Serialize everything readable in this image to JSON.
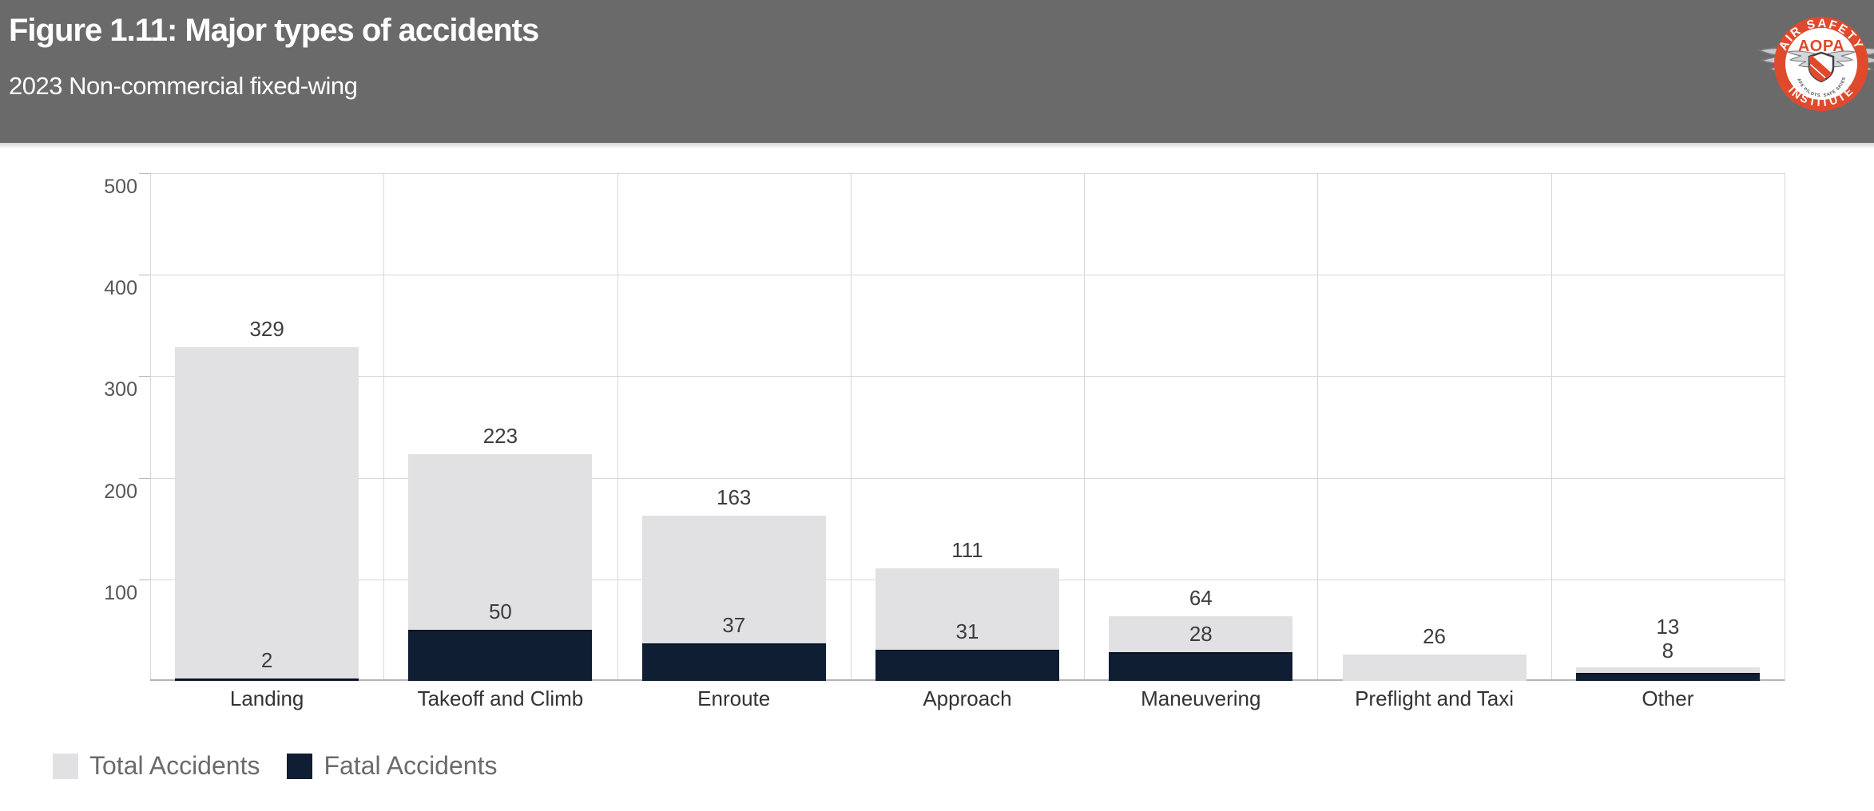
{
  "header": {
    "title": "Figure 1.11: Major types of accidents",
    "subtitle": "2023 Non-commercial fixed-wing",
    "logo": {
      "ring_top": "AIR SAFETY",
      "ring_bottom": "INSTITUTE",
      "center": "AOPA",
      "tagline": "SAFE PILOTS. SAFE SKIES.",
      "trademark": "™",
      "ring_color": "#e04a2c",
      "wing_color": "#c6c9cc"
    }
  },
  "chart_data": {
    "type": "bar",
    "title": "Major types of accidents",
    "categories": [
      "Landing",
      "Takeoff and Climb",
      "Enroute",
      "Approach",
      "Maneuvering",
      "Preflight and Taxi",
      "Other"
    ],
    "series": [
      {
        "name": "Total Accidents",
        "color": "#e1e1e3",
        "values": [
          329,
          223,
          163,
          111,
          64,
          26,
          13
        ]
      },
      {
        "name": "Fatal Accidents",
        "color": "#0f1e33",
        "values": [
          2,
          50,
          37,
          31,
          28,
          0,
          8
        ]
      }
    ],
    "xlabel": "",
    "ylabel": "",
    "ylim": [
      0,
      500
    ],
    "yticks": [
      100,
      200,
      300,
      400,
      500
    ],
    "grid": true,
    "legend_position": "bottom-left",
    "bar_value_labels": true
  },
  "legend": {
    "items": [
      {
        "label": "Total Accidents",
        "color": "#e1e1e3"
      },
      {
        "label": "Fatal Accidents",
        "color": "#0f1e33"
      }
    ]
  }
}
